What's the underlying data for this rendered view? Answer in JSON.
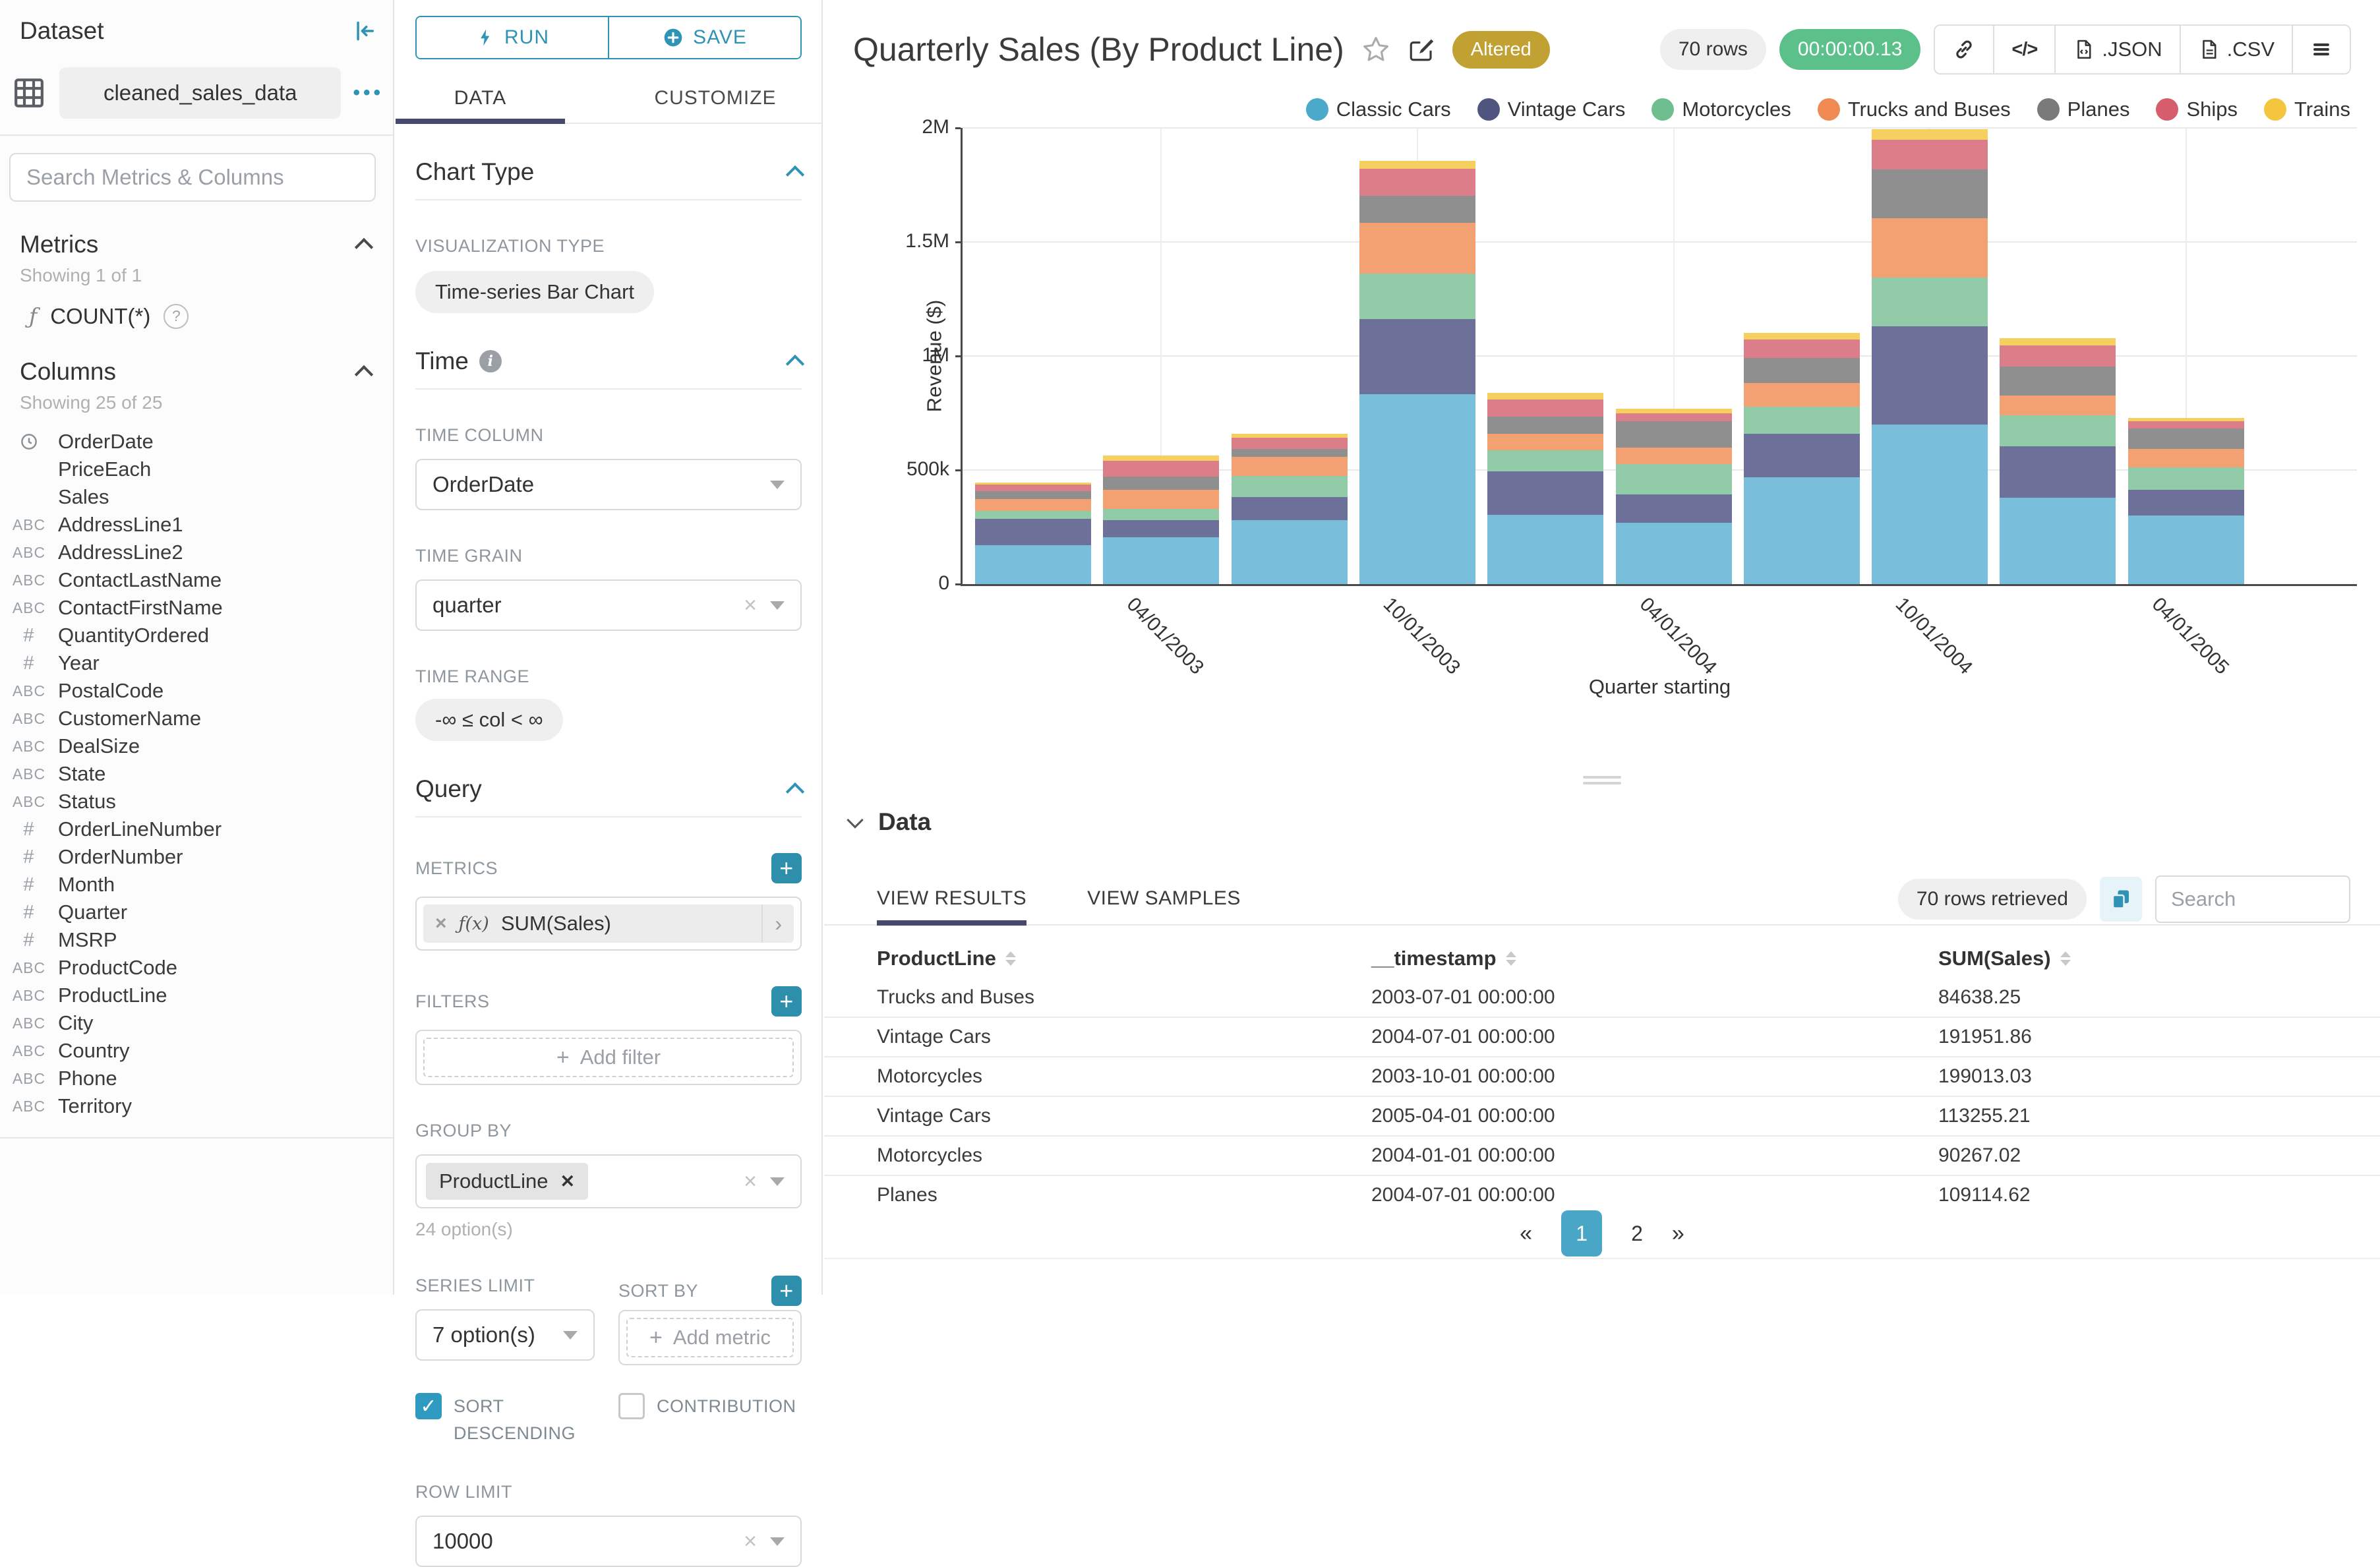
{
  "app": {
    "accent": "#2e93b4",
    "accent_dark": "#45486b",
    "altered_color": "#c0a132",
    "timer_color": "#5bc089"
  },
  "sidebar": {
    "title": "Dataset",
    "dataset_name": "cleaned_sales_data",
    "search_placeholder": "Search Metrics & Columns",
    "metrics_header": "Metrics",
    "metrics_showing": "Showing 1 of 1",
    "metric_items": [
      {
        "icon": "function",
        "name": "COUNT(*)"
      }
    ],
    "columns_header": "Columns",
    "columns_showing": "Showing 25 of 25",
    "columns": [
      {
        "icon": "clock",
        "name": "OrderDate"
      },
      {
        "icon": "",
        "name": "PriceEach"
      },
      {
        "icon": "",
        "name": "Sales"
      },
      {
        "icon": "abc",
        "name": "AddressLine1"
      },
      {
        "icon": "abc",
        "name": "AddressLine2"
      },
      {
        "icon": "abc",
        "name": "ContactLastName"
      },
      {
        "icon": "abc",
        "name": "ContactFirstName"
      },
      {
        "icon": "num",
        "name": "QuantityOrdered"
      },
      {
        "icon": "num",
        "name": "Year"
      },
      {
        "icon": "abc",
        "name": "PostalCode"
      },
      {
        "icon": "abc",
        "name": "CustomerName"
      },
      {
        "icon": "abc",
        "name": "DealSize"
      },
      {
        "icon": "abc",
        "name": "State"
      },
      {
        "icon": "abc",
        "name": "Status"
      },
      {
        "icon": "num",
        "name": "OrderLineNumber"
      },
      {
        "icon": "num",
        "name": "OrderNumber"
      },
      {
        "icon": "num",
        "name": "Month"
      },
      {
        "icon": "num",
        "name": "Quarter"
      },
      {
        "icon": "num",
        "name": "MSRP"
      },
      {
        "icon": "abc",
        "name": "ProductCode"
      },
      {
        "icon": "abc",
        "name": "ProductLine"
      },
      {
        "icon": "abc",
        "name": "City"
      },
      {
        "icon": "abc",
        "name": "Country"
      },
      {
        "icon": "abc",
        "name": "Phone"
      },
      {
        "icon": "abc",
        "name": "Territory"
      }
    ]
  },
  "controls": {
    "run_label": "RUN",
    "save_label": "SAVE",
    "tabs": {
      "data": "DATA",
      "customize": "CUSTOMIZE"
    },
    "chart_type": {
      "header": "Chart Type",
      "viz_label": "VISUALIZATION TYPE",
      "viz_value": "Time-series Bar Chart"
    },
    "time": {
      "header": "Time",
      "column_label": "TIME COLUMN",
      "column_value": "OrderDate",
      "grain_label": "TIME GRAIN",
      "grain_value": "quarter",
      "range_label": "TIME RANGE",
      "range_value": "-∞ ≤ col < ∞"
    },
    "query": {
      "header": "Query",
      "metrics_label": "METRICS",
      "metric_fx": "ƒ(x)",
      "metric_value": "SUM(Sales)",
      "filters_label": "FILTERS",
      "add_filter": "Add filter",
      "groupby_label": "GROUP BY",
      "groupby_value": "ProductLine",
      "groupby_hint": "24 option(s)",
      "series_limit_label": "SERIES LIMIT",
      "series_limit_value": "7 option(s)",
      "sortby_label": "SORT BY",
      "add_metric": "Add metric",
      "sort_desc_label": "SORT DESCENDING",
      "contribution_label": "CONTRIBUTION",
      "row_limit_label": "ROW LIMIT",
      "row_limit_value": "10000"
    }
  },
  "header": {
    "title": "Quarterly Sales (By Product Line)",
    "altered_badge": "Altered",
    "rows_badge": "70 rows",
    "timer_badge": "00:00:00.13",
    "export_json": ".JSON",
    "export_csv": ".CSV"
  },
  "chart_data": {
    "type": "bar",
    "stacked": true,
    "title": "Quarterly Sales (By Product Line)",
    "xlabel": "Quarter starting",
    "ylabel": "Revenue ($)",
    "ylim": [
      0,
      2000000
    ],
    "y_ticks": [
      "0",
      "500k",
      "1M",
      "1.5M",
      "2M"
    ],
    "grid": true,
    "legend_position": "top-right",
    "categories": [
      "01/01/2003",
      "04/01/2003",
      "07/01/2003",
      "10/01/2003",
      "01/01/2004",
      "04/01/2004",
      "07/01/2004",
      "10/01/2004",
      "01/01/2005",
      "04/01/2005"
    ],
    "x_tick_labels": [
      "04/01/2003",
      "10/01/2003",
      "04/01/2004",
      "10/01/2004",
      "04/01/2005"
    ],
    "x_tick_indices": [
      1,
      3,
      5,
      7,
      9
    ],
    "series": [
      {
        "name": "Classic Cars",
        "color": "#4ba9c9",
        "bar_color": "#79bfdc",
        "values": [
          170400,
          205100,
          280200,
          831100,
          302200,
          268900,
          467300,
          699800,
          377300,
          300300
        ]
      },
      {
        "name": "Vintage Cars",
        "color": "#50557f",
        "bar_color": "#6d7199",
        "values": [
          115300,
          74200,
          100400,
          330100,
          193200,
          123300,
          191951.86,
          430200,
          226100,
          113255.21
        ]
      },
      {
        "name": "Motorcycles",
        "color": "#6fbe90",
        "bar_color": "#92cba7",
        "values": [
          36300,
          50200,
          92100,
          199013.03,
          90267.02,
          134200,
          119100,
          215300,
          135200,
          97100
        ]
      },
      {
        "name": "Trucks and Buses",
        "color": "#ef8b52",
        "bar_color": "#f3a073",
        "values": [
          52100,
          83300,
          84638.25,
          223100,
          74300,
          71200,
          104300,
          258100,
          89200,
          82100
        ]
      },
      {
        "name": "Planes",
        "color": "#7a7a7a",
        "bar_color": "#8f8f8f",
        "values": [
          34200,
          59100,
          35300,
          120200,
          73100,
          116300,
          109114.62,
          215200,
          126300,
          89300
        ]
      },
      {
        "name": "Ships",
        "color": "#d55d6c",
        "bar_color": "#dc7e89",
        "values": [
          28100,
          68200,
          50100,
          116100,
          77200,
          36100,
          80200,
          128200,
          91100,
          33200
        ]
      },
      {
        "name": "Trains",
        "color": "#f4c63f",
        "bar_color": "#f6d05f",
        "values": [
          10200,
          22900,
          15200,
          37300,
          28300,
          19100,
          30200,
          47100,
          33300,
          12100
        ]
      }
    ]
  },
  "data_panel": {
    "header": "Data",
    "tabs": [
      "VIEW RESULTS",
      "VIEW SAMPLES"
    ],
    "rows_retrieved": "70 rows retrieved",
    "search_placeholder": "Search",
    "table": {
      "columns": [
        "ProductLine",
        "__timestamp",
        "SUM(Sales)"
      ],
      "rows": [
        [
          "Trucks and Buses",
          "2003-07-01 00:00:00",
          "84638.25"
        ],
        [
          "Vintage Cars",
          "2004-07-01 00:00:00",
          "191951.86"
        ],
        [
          "Motorcycles",
          "2003-10-01 00:00:00",
          "199013.03"
        ],
        [
          "Vintage Cars",
          "2005-04-01 00:00:00",
          "113255.21"
        ],
        [
          "Motorcycles",
          "2004-01-01 00:00:00",
          "90267.02"
        ],
        [
          "Planes",
          "2004-07-01 00:00:00",
          "109114.62"
        ]
      ]
    },
    "pagination": {
      "prev": "«",
      "pages": [
        "1",
        "2"
      ],
      "active": "1",
      "next": "»"
    }
  },
  "icons": [
    "collapse-left-icon",
    "table-grid-icon",
    "ellipsis-icon",
    "clock-icon",
    "abc-icon",
    "hash-icon",
    "function-icon",
    "help-icon",
    "bolt-icon",
    "plus-circle-icon",
    "info-icon",
    "plus-icon",
    "clear-x-icon",
    "chevron-icons",
    "star-icon",
    "edit-icon",
    "link-icon",
    "code-icon",
    "file-json-icon",
    "file-csv-icon",
    "menu-icon",
    "copy-icon",
    "sort-arrows-icon"
  ]
}
